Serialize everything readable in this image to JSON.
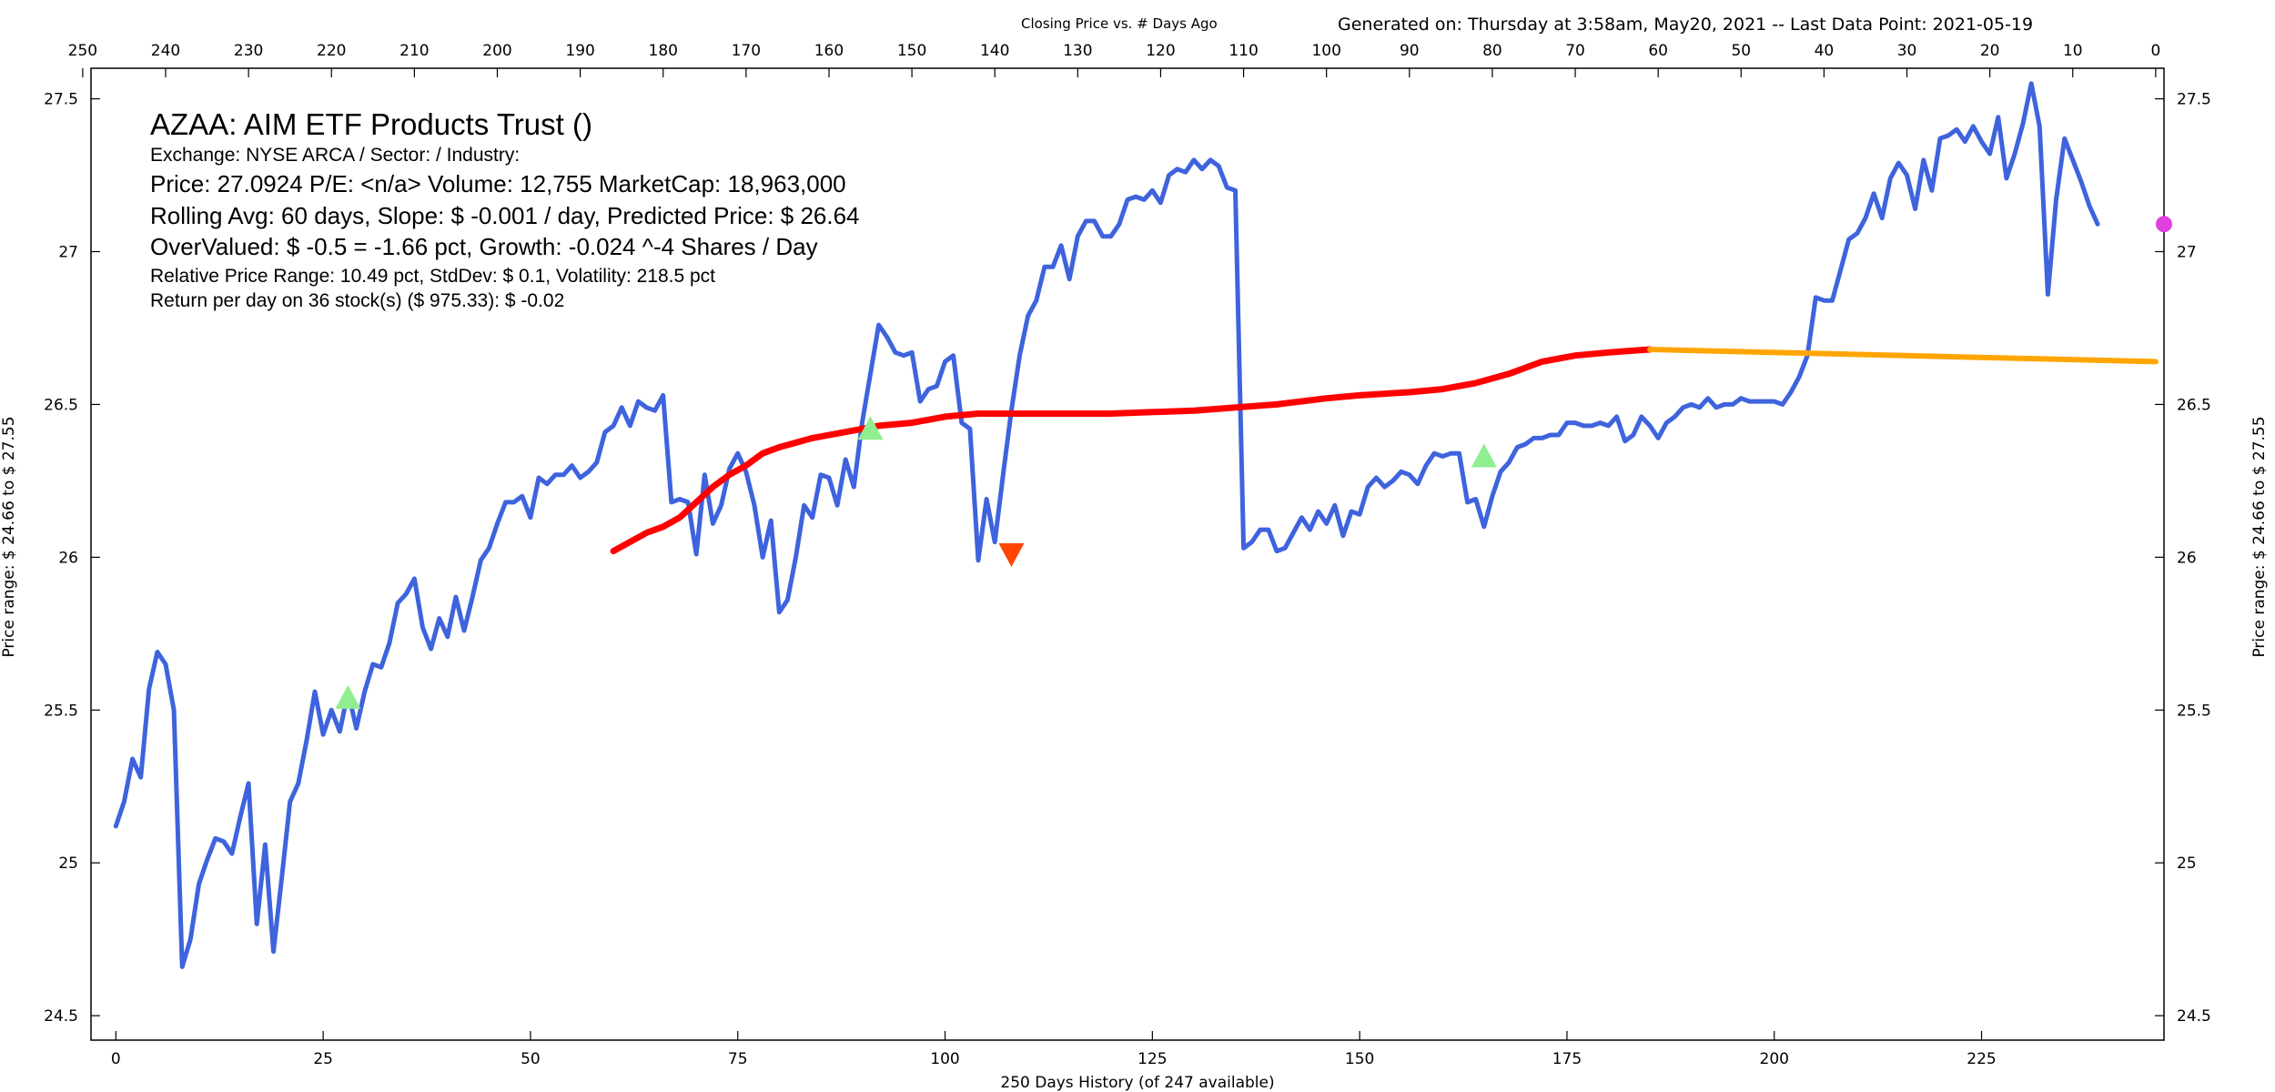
{
  "header": {
    "chart_title": "Closing Price vs. # Days Ago",
    "generated": "Generated on:  Thursday at  3:58am, May20, 2021  --  Last Data Point:  2021-05-19"
  },
  "info": {
    "title": "AZAA:  AIM ETF Products Trust  ()",
    "exchange": "Exchange: NYSE ARCA  /  Sector:   /  Industry:",
    "price_line": "Price: 27.0924  P/E: <n/a> Volume: 12,755  MarketCap: 18,963,000",
    "rolling_line": "Rolling Avg: 60 days, Slope: $ -0.001 / day, Predicted Price: $ 26.64",
    "overvalued_line": "OverValued: $ -0.5 = -1.66 pct,  Growth: -0.024 ^-4 Shares / Day",
    "range_line": "Relative Price Range: 10.49 pct, StdDev: $ 0.1, Volatility: 218.5 pct",
    "return_line": "Return per day on 36 stock(s) ($ 975.33): $ -0.02"
  },
  "colors": {
    "price": "#3e63dd",
    "rolling": "#ff0000",
    "projection": "#ffa500",
    "buy_marker": "#90ee90",
    "sell_marker": "#ff4500",
    "current_marker": "#e040e0"
  },
  "chart_data": {
    "type": "line",
    "xlabel": "250 Days History (of 247 available)",
    "ylabel_left": "Price range:  $ 24.66  to  $ 27.55",
    "ylabel_right": "Price range:  $ 24.66  to  $ 27.55",
    "xlim": [
      -3,
      247
    ],
    "ylim": [
      24.42,
      27.6
    ],
    "x_ticks": [
      0,
      25,
      50,
      75,
      100,
      125,
      150,
      175,
      200,
      225
    ],
    "top_x_ticks": [
      250,
      240,
      230,
      220,
      210,
      200,
      190,
      180,
      170,
      160,
      150,
      140,
      130,
      120,
      110,
      100,
      90,
      80,
      70,
      60,
      50,
      40,
      30,
      20,
      10,
      0
    ],
    "y_ticks": [
      "24.5",
      "25",
      "25.5",
      "26",
      "26.5",
      "27",
      "27.5"
    ],
    "grid": false,
    "series": [
      {
        "role": "price",
        "values": [
          25.12,
          25.2,
          25.34,
          25.28,
          25.57,
          25.69,
          25.65,
          25.5,
          24.66,
          24.75,
          24.93,
          25.01,
          25.08,
          25.07,
          25.03,
          25.15,
          25.26,
          24.8,
          25.06,
          24.71,
          24.95,
          25.2,
          25.26,
          25.4,
          25.56,
          25.42,
          25.5,
          25.43,
          25.56,
          25.44,
          25.56,
          25.65,
          25.64,
          25.72,
          25.85,
          25.88,
          25.93,
          25.77,
          25.7,
          25.8,
          25.74,
          25.87,
          25.76,
          25.87,
          25.99,
          26.03,
          26.11,
          26.18,
          26.18,
          26.2,
          26.13,
          26.26,
          26.24,
          26.27,
          26.27,
          26.3,
          26.26,
          26.28,
          26.31,
          26.41,
          26.43,
          26.49,
          26.43,
          26.51,
          26.49,
          26.48,
          26.53,
          26.18,
          26.19,
          26.18,
          26.01,
          26.27,
          26.11,
          26.17,
          26.29,
          26.34,
          26.28,
          26.17,
          26.0,
          26.12,
          25.82,
          25.86,
          26.0,
          26.17,
          26.13,
          26.27,
          26.26,
          26.17,
          26.32,
          26.23,
          26.44,
          26.6,
          26.76,
          26.72,
          26.67,
          26.66,
          26.67,
          26.51,
          26.55,
          26.56,
          26.64,
          26.66,
          26.44,
          26.42,
          25.99,
          26.19,
          26.05,
          26.27,
          26.48,
          26.66,
          26.79,
          26.84,
          26.95,
          26.95,
          27.02,
          26.91,
          27.05,
          27.1,
          27.1,
          27.05,
          27.05,
          27.09,
          27.17,
          27.18,
          27.17,
          27.2,
          27.16,
          27.25,
          27.27,
          27.26,
          27.3,
          27.27,
          27.3,
          27.28,
          27.21,
          27.2,
          26.03,
          26.05,
          26.09,
          26.09,
          26.02,
          26.03,
          26.08,
          26.13,
          26.09,
          26.15,
          26.11,
          26.17,
          26.07,
          26.15,
          26.14,
          26.23,
          26.26,
          26.23,
          26.25,
          26.28,
          26.27,
          26.24,
          26.3,
          26.34,
          26.33,
          26.34,
          26.34,
          26.18,
          26.19,
          26.1,
          26.2,
          26.28,
          26.31,
          26.36,
          26.37,
          26.39,
          26.39,
          26.4,
          26.4,
          26.44,
          26.44,
          26.43,
          26.43,
          26.44,
          26.43,
          26.46,
          26.38,
          26.4,
          26.46,
          26.43,
          26.39,
          26.44,
          26.46,
          26.49,
          26.5,
          26.49,
          26.52,
          26.49,
          26.5,
          26.5,
          26.52,
          26.51,
          26.51,
          26.51,
          26.51,
          26.5,
          26.54,
          26.59,
          26.66,
          26.85,
          26.84,
          26.84,
          26.94,
          27.04,
          27.06,
          27.11,
          27.19,
          27.11,
          27.24,
          27.29,
          27.25,
          27.14,
          27.3,
          27.2,
          27.37,
          27.38,
          27.4,
          27.36,
          27.41,
          27.36,
          27.32,
          27.44,
          27.24,
          27.32,
          27.42,
          27.55,
          27.41,
          26.86,
          27.17,
          27.37,
          27.3,
          27.23,
          27.15,
          27.09
        ]
      },
      {
        "role": "rolling_average",
        "x": [
          60,
          62,
          64,
          66,
          68,
          70,
          72,
          74,
          76,
          78,
          80,
          84,
          88,
          92,
          96,
          100,
          104,
          110,
          120,
          130,
          140,
          146,
          150,
          156,
          160,
          164,
          168,
          172,
          176,
          180,
          185
        ],
        "values": [
          26.02,
          26.05,
          26.08,
          26.1,
          26.13,
          26.18,
          26.23,
          26.27,
          26.3,
          26.34,
          26.36,
          26.39,
          26.41,
          26.43,
          26.44,
          26.46,
          26.47,
          26.47,
          26.47,
          26.48,
          26.5,
          26.52,
          26.53,
          26.54,
          26.55,
          26.57,
          26.6,
          26.64,
          26.66,
          26.67,
          26.68
        ]
      },
      {
        "role": "projection",
        "x": [
          185,
          246
        ],
        "values": [
          26.68,
          26.64
        ]
      }
    ],
    "markers": [
      {
        "type": "buy",
        "x": 28,
        "y": 25.54
      },
      {
        "type": "buy",
        "x": 91,
        "y": 26.42
      },
      {
        "type": "sell",
        "x": 108,
        "y": 26.01
      },
      {
        "type": "buy",
        "x": 165,
        "y": 26.33
      },
      {
        "type": "current",
        "x": 247,
        "y": 27.09
      }
    ]
  }
}
